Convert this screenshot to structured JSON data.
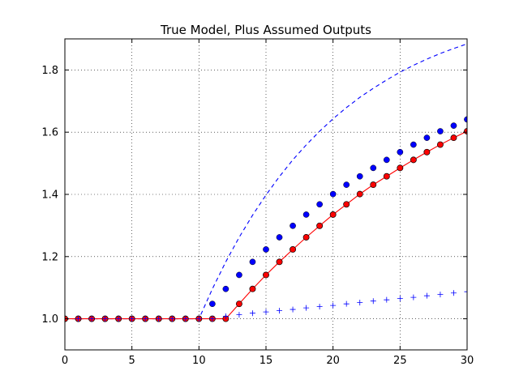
{
  "chart_data": {
    "type": "line",
    "title": "True Model, Plus Assumed Outputs",
    "xlabel": "",
    "ylabel": "",
    "xlim": [
      0,
      30
    ],
    "ylim": [
      0.9,
      1.9
    ],
    "xticks": [
      0,
      5,
      10,
      15,
      20,
      25,
      30
    ],
    "xtick_labels": [
      "0",
      "5",
      "10",
      "15",
      "20",
      "25",
      "30"
    ],
    "yticks": [
      1.0,
      1.2,
      1.4,
      1.6,
      1.8
    ],
    "ytick_labels": [
      "1.0",
      "1.2",
      "1.4",
      "1.6",
      "1.8"
    ],
    "grid": true,
    "legend": "none",
    "colors": {
      "blue": "#0000ff",
      "red": "#ff0000",
      "red_edge": "#000000"
    },
    "x": [
      0,
      1,
      2,
      3,
      4,
      5,
      6,
      7,
      8,
      9,
      10,
      11,
      12,
      13,
      14,
      15,
      16,
      17,
      18,
      19,
      20,
      21,
      22,
      23,
      24,
      25,
      26,
      27,
      28,
      29,
      30
    ],
    "series": [
      {
        "style": "dashed-line",
        "color": "#0000ff",
        "points": [
          [
            0,
            1.0
          ],
          [
            10,
            1.0
          ],
          [
            11,
            1.096
          ],
          [
            12,
            1.183
          ],
          [
            13,
            1.262
          ],
          [
            14,
            1.333
          ],
          [
            15,
            1.398
          ],
          [
            16,
            1.457
          ],
          [
            17,
            1.511
          ],
          [
            18,
            1.559
          ],
          [
            19,
            1.603
          ],
          [
            20,
            1.643
          ],
          [
            21,
            1.679
          ],
          [
            22,
            1.712
          ],
          [
            23,
            1.741
          ],
          [
            24,
            1.768
          ],
          [
            25,
            1.793
          ],
          [
            26,
            1.815
          ],
          [
            27,
            1.835
          ],
          [
            28,
            1.853
          ],
          [
            29,
            1.869
          ],
          [
            30,
            1.884
          ]
        ]
      },
      {
        "style": "circles",
        "color": "#0000ff",
        "values": [
          1.0,
          1.0,
          1.0,
          1.0,
          1.0,
          1.0,
          1.0,
          1.0,
          1.0,
          1.0,
          1.0,
          1.048,
          1.096,
          1.141,
          1.183,
          1.223,
          1.262,
          1.299,
          1.335,
          1.368,
          1.401,
          1.431,
          1.458,
          1.485,
          1.511,
          1.536,
          1.56,
          1.582,
          1.603,
          1.621,
          1.641
        ]
      },
      {
        "style": "line-with-circles",
        "color": "#ff0000",
        "values": [
          1.0,
          1.0,
          1.0,
          1.0,
          1.0,
          1.0,
          1.0,
          1.0,
          1.0,
          1.0,
          1.0,
          1.0,
          1.0,
          1.048,
          1.096,
          1.141,
          1.183,
          1.223,
          1.262,
          1.299,
          1.335,
          1.368,
          1.401,
          1.431,
          1.458,
          1.485,
          1.511,
          1.536,
          1.56,
          1.582,
          1.603
        ]
      },
      {
        "style": "plus-markers",
        "color": "#0000ff",
        "values": [
          1.0,
          1.0,
          1.0,
          1.0,
          1.0,
          1.0,
          1.0,
          1.0,
          1.0,
          1.0,
          1.0,
          1.0,
          1.008,
          1.013,
          1.018,
          1.022,
          1.026,
          1.03,
          1.035,
          1.039,
          1.043,
          1.048,
          1.052,
          1.057,
          1.061,
          1.065,
          1.069,
          1.074,
          1.078,
          1.083,
          1.087
        ]
      }
    ]
  }
}
